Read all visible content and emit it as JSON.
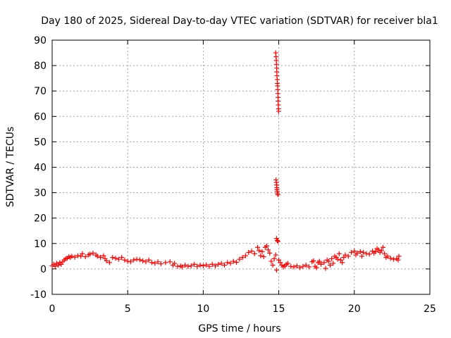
{
  "chart_data": {
    "type": "scatter",
    "title": "Day 180 of 2025, Sidereal Day-to-day VTEC variation (SDTVAR) for receiver bla1",
    "xlabel": "GPS time / hours",
    "ylabel": "SDTVAR / TECUs",
    "xlim": [
      0,
      25
    ],
    "ylim": [
      -10,
      90
    ],
    "xticks": [
      0,
      5,
      10,
      15,
      20,
      25
    ],
    "yticks": [
      -10,
      0,
      10,
      20,
      30,
      40,
      50,
      60,
      70,
      80,
      90
    ],
    "grid": true,
    "marker": "+",
    "color": "#ff0000",
    "series": [
      {
        "name": "SDTVAR",
        "points": [
          [
            0.0,
            1.2
          ],
          [
            0.1,
            1.8
          ],
          [
            0.2,
            1.0
          ],
          [
            0.3,
            2.2
          ],
          [
            0.4,
            1.5
          ],
          [
            0.5,
            2.5
          ],
          [
            0.6,
            1.8
          ],
          [
            0.7,
            2.8
          ],
          [
            0.8,
            3.5
          ],
          [
            0.9,
            4.0
          ],
          [
            1.0,
            4.2
          ],
          [
            1.1,
            4.8
          ],
          [
            1.2,
            4.5
          ],
          [
            1.3,
            5.0
          ],
          [
            1.5,
            4.6
          ],
          [
            1.7,
            5.2
          ],
          [
            1.9,
            5.0
          ],
          [
            2.0,
            6.0
          ],
          [
            2.2,
            4.8
          ],
          [
            2.4,
            5.5
          ],
          [
            2.5,
            5.8
          ],
          [
            2.7,
            6.2
          ],
          [
            2.9,
            5.5
          ],
          [
            3.0,
            5.0
          ],
          [
            3.2,
            4.5
          ],
          [
            3.4,
            5.2
          ],
          [
            3.5,
            4.0
          ],
          [
            3.6,
            3.2
          ],
          [
            3.8,
            2.5
          ],
          [
            4.0,
            4.5
          ],
          [
            4.2,
            4.2
          ],
          [
            4.4,
            3.8
          ],
          [
            4.6,
            4.5
          ],
          [
            4.8,
            3.5
          ],
          [
            5.0,
            3.0
          ],
          [
            5.2,
            2.8
          ],
          [
            5.4,
            3.5
          ],
          [
            5.6,
            3.8
          ],
          [
            5.8,
            3.6
          ],
          [
            6.0,
            3.2
          ],
          [
            6.2,
            2.8
          ],
          [
            6.4,
            3.5
          ],
          [
            6.6,
            2.5
          ],
          [
            6.8,
            2.2
          ],
          [
            7.0,
            2.8
          ],
          [
            7.2,
            2.0
          ],
          [
            7.5,
            2.5
          ],
          [
            7.8,
            2.8
          ],
          [
            8.0,
            1.5
          ],
          [
            8.1,
            2.2
          ],
          [
            8.3,
            1.0
          ],
          [
            8.5,
            1.2
          ],
          [
            8.6,
            0.8
          ],
          [
            8.8,
            1.5
          ],
          [
            9.0,
            1.0
          ],
          [
            9.2,
            1.2
          ],
          [
            9.4,
            1.8
          ],
          [
            9.6,
            1.0
          ],
          [
            9.8,
            1.5
          ],
          [
            10.0,
            1.2
          ],
          [
            10.2,
            1.6
          ],
          [
            10.4,
            1.0
          ],
          [
            10.6,
            1.8
          ],
          [
            10.8,
            1.2
          ],
          [
            11.0,
            1.8
          ],
          [
            11.2,
            2.2
          ],
          [
            11.4,
            1.5
          ],
          [
            11.6,
            2.5
          ],
          [
            11.8,
            2.2
          ],
          [
            12.0,
            3.0
          ],
          [
            12.2,
            2.6
          ],
          [
            12.4,
            3.8
          ],
          [
            12.6,
            4.5
          ],
          [
            12.8,
            5.2
          ],
          [
            13.0,
            6.5
          ],
          [
            13.2,
            7.0
          ],
          [
            13.4,
            6.0
          ],
          [
            13.6,
            8.5
          ],
          [
            13.7,
            7.2
          ],
          [
            13.8,
            5.2
          ],
          [
            13.9,
            6.8
          ],
          [
            14.0,
            4.8
          ],
          [
            14.1,
            8.5
          ],
          [
            14.2,
            9.0
          ],
          [
            14.3,
            7.5
          ],
          [
            14.4,
            6.2
          ],
          [
            14.5,
            3.0
          ],
          [
            14.6,
            1.5
          ],
          [
            14.7,
            4.0
          ],
          [
            14.8,
            5.5
          ],
          [
            14.85,
            12.0
          ],
          [
            14.9,
            11.2
          ],
          [
            14.95,
            10.8
          ],
          [
            14.85,
            -0.5
          ],
          [
            15.0,
            3.5
          ],
          [
            15.1,
            2.5
          ],
          [
            15.2,
            1.5
          ],
          [
            15.3,
            0.8
          ],
          [
            15.4,
            1.2
          ],
          [
            15.5,
            1.8
          ],
          [
            15.6,
            2.2
          ],
          [
            15.8,
            1.0
          ],
          [
            16.0,
            0.8
          ],
          [
            16.2,
            1.2
          ],
          [
            16.4,
            0.5
          ],
          [
            16.6,
            1.0
          ],
          [
            16.8,
            1.5
          ],
          [
            17.0,
            0.8
          ],
          [
            17.2,
            2.8
          ],
          [
            17.3,
            3.2
          ],
          [
            17.4,
            1.0
          ],
          [
            17.5,
            0.5
          ],
          [
            17.6,
            2.5
          ],
          [
            17.7,
            3.0
          ],
          [
            17.8,
            1.8
          ],
          [
            18.0,
            2.5
          ],
          [
            18.1,
            0.2
          ],
          [
            18.2,
            3.5
          ],
          [
            18.3,
            3.0
          ],
          [
            18.4,
            1.5
          ],
          [
            18.5,
            4.0
          ],
          [
            18.6,
            2.2
          ],
          [
            18.7,
            5.0
          ],
          [
            18.8,
            4.5
          ],
          [
            18.9,
            3.8
          ],
          [
            19.0,
            6.0
          ],
          [
            19.1,
            3.5
          ],
          [
            19.2,
            2.5
          ],
          [
            19.3,
            4.5
          ],
          [
            19.4,
            5.5
          ],
          [
            19.6,
            5.0
          ],
          [
            19.8,
            6.5
          ],
          [
            20.0,
            7.0
          ],
          [
            20.1,
            5.5
          ],
          [
            20.2,
            6.2
          ],
          [
            20.4,
            6.8
          ],
          [
            20.5,
            5.0
          ],
          [
            20.6,
            6.5
          ],
          [
            20.8,
            6.0
          ],
          [
            21.0,
            5.8
          ],
          [
            21.2,
            7.0
          ],
          [
            21.3,
            6.2
          ],
          [
            21.4,
            6.8
          ],
          [
            21.5,
            8.0
          ],
          [
            21.6,
            7.5
          ],
          [
            21.7,
            6.5
          ],
          [
            21.8,
            7.2
          ],
          [
            21.9,
            8.5
          ],
          [
            22.0,
            6.0
          ],
          [
            22.1,
            4.5
          ],
          [
            22.2,
            5.0
          ],
          [
            22.4,
            4.2
          ],
          [
            22.6,
            3.8
          ],
          [
            22.8,
            4.0
          ],
          [
            22.9,
            3.5
          ],
          [
            22.95,
            5.0
          ],
          [
            14.8,
            85
          ],
          [
            14.82,
            83.5
          ],
          [
            14.84,
            82
          ],
          [
            14.85,
            80.5
          ],
          [
            14.86,
            79
          ],
          [
            14.87,
            77.5
          ],
          [
            14.88,
            76
          ],
          [
            14.9,
            74.5
          ],
          [
            14.91,
            73
          ],
          [
            14.92,
            72
          ],
          [
            14.93,
            70.5
          ],
          [
            14.94,
            69
          ],
          [
            14.95,
            67.5
          ],
          [
            14.96,
            66
          ],
          [
            14.97,
            64.5
          ],
          [
            14.98,
            63
          ],
          [
            14.99,
            62
          ],
          [
            14.82,
            35
          ],
          [
            14.84,
            34
          ],
          [
            14.86,
            33
          ],
          [
            14.87,
            32
          ],
          [
            14.88,
            31.2
          ],
          [
            14.9,
            30.5
          ],
          [
            14.92,
            29.8
          ],
          [
            14.94,
            29.2
          ]
        ]
      }
    ]
  }
}
